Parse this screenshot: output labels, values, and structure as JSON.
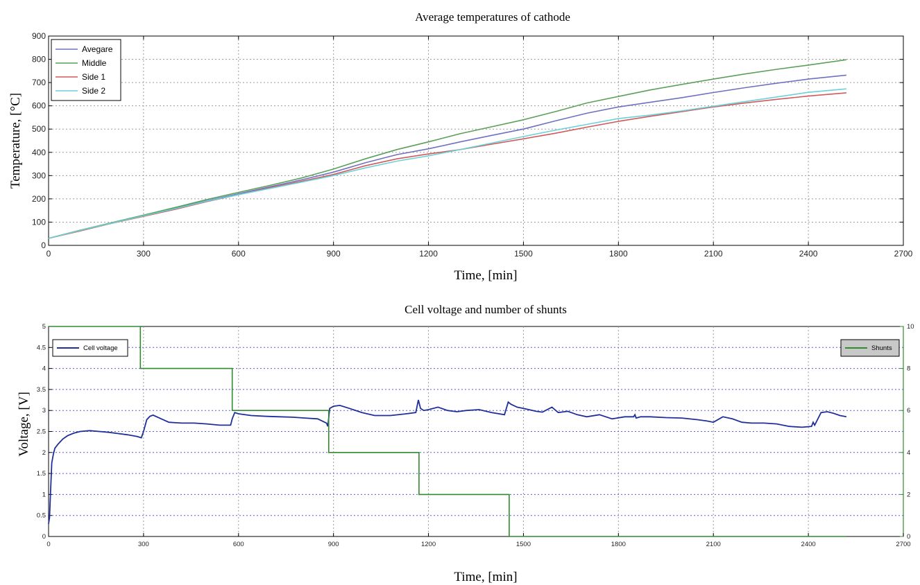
{
  "chart_data": [
    {
      "type": "line",
      "title": "Average temperatures of cathode",
      "xlabel": "Time, [min]",
      "ylabel": "Temperature, [°C]",
      "xlim": [
        0,
        2700
      ],
      "ylim": [
        0,
        900
      ],
      "xticks": [
        "0",
        "300",
        "600",
        "900",
        "1200",
        "1500",
        "1800",
        "2100",
        "2400",
        "2700"
      ],
      "yticks": [
        "0",
        "100",
        "200",
        "300",
        "400",
        "500",
        "600",
        "700",
        "800",
        "900"
      ],
      "grid": true,
      "legend_position": "top-left",
      "series": [
        {
          "name": "Avegare",
          "color": "#7070c0",
          "x": [
            0,
            100,
            200,
            300,
            400,
            500,
            600,
            700,
            800,
            900,
            1000,
            1100,
            1200,
            1300,
            1400,
            1500,
            1600,
            1700,
            1800,
            1900,
            2000,
            2100,
            2200,
            2300,
            2400,
            2520
          ],
          "y": [
            30,
            65,
            97,
            128,
            160,
            192,
            222,
            252,
            282,
            315,
            355,
            390,
            415,
            445,
            473,
            500,
            535,
            568,
            595,
            615,
            635,
            657,
            678,
            697,
            715,
            732
          ]
        },
        {
          "name": "Middle",
          "color": "#5aa05a",
          "x": [
            0,
            100,
            200,
            300,
            400,
            500,
            600,
            700,
            800,
            900,
            1000,
            1100,
            1200,
            1300,
            1400,
            1500,
            1600,
            1700,
            1800,
            1900,
            2000,
            2100,
            2200,
            2300,
            2400,
            2520
          ],
          "y": [
            30,
            65,
            98,
            130,
            163,
            197,
            228,
            258,
            290,
            328,
            372,
            412,
            445,
            480,
            510,
            540,
            575,
            612,
            640,
            668,
            692,
            715,
            737,
            757,
            775,
            798
          ]
        },
        {
          "name": "Side 1",
          "color": "#d05a5a",
          "x": [
            0,
            100,
            200,
            300,
            400,
            500,
            600,
            700,
            800,
            900,
            1000,
            1100,
            1200,
            1300,
            1400,
            1500,
            1600,
            1700,
            1800,
            1900,
            2000,
            2100,
            2200,
            2300,
            2400,
            2520
          ],
          "y": [
            30,
            62,
            95,
            125,
            155,
            188,
            218,
            248,
            276,
            305,
            342,
            372,
            393,
            412,
            435,
            458,
            482,
            508,
            533,
            555,
            575,
            595,
            612,
            628,
            642,
            656
          ]
        },
        {
          "name": "Side 2",
          "color": "#6cd0d8",
          "x": [
            0,
            100,
            200,
            300,
            400,
            500,
            600,
            700,
            800,
            900,
            1000,
            1100,
            1200,
            1300,
            1400,
            1500,
            1600,
            1700,
            1800,
            1900,
            2000,
            2100,
            2200,
            2300,
            2400,
            2520
          ],
          "y": [
            30,
            64,
            96,
            127,
            158,
            190,
            218,
            245,
            272,
            300,
            333,
            362,
            385,
            412,
            440,
            468,
            495,
            520,
            545,
            560,
            578,
            598,
            618,
            638,
            658,
            673
          ]
        }
      ]
    },
    {
      "type": "line",
      "title": "Cell voltage and number of shunts",
      "xlabel": "Time, [min]",
      "ylabel": "Voltage, [V]",
      "xlim": [
        0,
        2700
      ],
      "ylim": [
        0,
        5
      ],
      "y2lim": [
        0,
        10
      ],
      "xticks": [
        "0",
        "300",
        "600",
        "900",
        "1200",
        "1500",
        "1800",
        "2100",
        "2400",
        "2700"
      ],
      "yticks": [
        "0",
        "0.5",
        "1",
        "1.5",
        "2",
        "2.5",
        "3",
        "3.5",
        "4",
        "4.5",
        "5"
      ],
      "y2ticks": [
        "0",
        "2",
        "4",
        "6",
        "8",
        "10"
      ],
      "grid": true,
      "series": [
        {
          "name": "Cell voltage",
          "axis": "left",
          "color": "#1f2f9a",
          "legend_position": "top-left",
          "x": [
            0,
            3,
            6,
            10,
            15,
            20,
            30,
            45,
            60,
            80,
            100,
            130,
            160,
            190,
            220,
            250,
            280,
            293,
            300,
            310,
            320,
            330,
            350,
            380,
            420,
            460,
            500,
            540,
            575,
            580,
            588,
            600,
            640,
            690,
            730,
            770,
            810,
            850,
            878,
            882,
            888,
            900,
            920,
            950,
            990,
            1030,
            1080,
            1130,
            1160,
            1168,
            1175,
            1185,
            1200,
            1230,
            1260,
            1290,
            1320,
            1360,
            1400,
            1440,
            1452,
            1460,
            1480,
            1500,
            1540,
            1560,
            1590,
            1610,
            1640,
            1670,
            1700,
            1740,
            1780,
            1820,
            1848,
            1852,
            1856,
            1870,
            1900,
            1950,
            2000,
            2050,
            2080,
            2100,
            2130,
            2160,
            2190,
            2220,
            2260,
            2300,
            2340,
            2380,
            2410,
            2415,
            2420,
            2440,
            2460,
            2480,
            2500,
            2520
          ],
          "y": [
            0.3,
            0.45,
            1.0,
            1.75,
            1.95,
            2.1,
            2.2,
            2.32,
            2.4,
            2.46,
            2.5,
            2.52,
            2.5,
            2.48,
            2.45,
            2.42,
            2.38,
            2.35,
            2.5,
            2.78,
            2.86,
            2.89,
            2.82,
            2.72,
            2.7,
            2.7,
            2.68,
            2.65,
            2.65,
            2.8,
            2.95,
            2.92,
            2.88,
            2.86,
            2.85,
            2.84,
            2.82,
            2.8,
            2.7,
            2.62,
            3.05,
            3.1,
            3.12,
            3.05,
            2.95,
            2.88,
            2.88,
            2.92,
            2.95,
            3.25,
            3.05,
            3.0,
            3.02,
            3.08,
            3.0,
            2.97,
            3.0,
            3.02,
            2.95,
            2.9,
            3.2,
            3.15,
            3.08,
            3.05,
            2.98,
            2.96,
            3.08,
            2.95,
            2.98,
            2.9,
            2.85,
            2.9,
            2.8,
            2.85,
            2.85,
            2.9,
            2.82,
            2.85,
            2.85,
            2.83,
            2.82,
            2.78,
            2.75,
            2.72,
            2.85,
            2.8,
            2.72,
            2.7,
            2.7,
            2.68,
            2.62,
            2.6,
            2.62,
            2.72,
            2.65,
            2.95,
            2.97,
            2.93,
            2.88,
            2.85
          ]
        },
        {
          "name": "Shunts",
          "axis": "right",
          "color": "#2e8b2e",
          "legend_position": "top-right",
          "step": true,
          "x": [
            0,
            290,
            290,
            580,
            580,
            885,
            885,
            1170,
            1170,
            1455,
            1455,
            2520
          ],
          "y": [
            10,
            10,
            8,
            8,
            6,
            6,
            4,
            4,
            2,
            2,
            0,
            0
          ]
        }
      ]
    }
  ]
}
